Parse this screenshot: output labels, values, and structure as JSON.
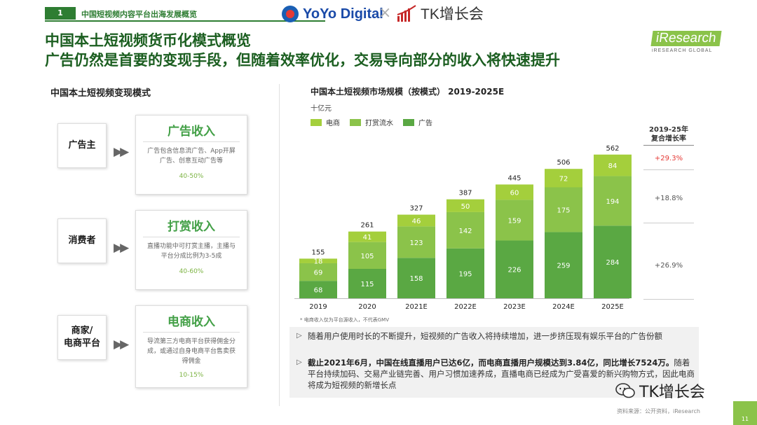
{
  "header": {
    "page_num": "1",
    "section": "中国短视频内容平台出海发展概览",
    "logo_yoyo": "YoYo Digital",
    "logo_sep": "×",
    "logo_tk": "TK增长会"
  },
  "titles": {
    "line1": "中国本土短视频货币化模式概览",
    "line2": "广告仍然是首要的变现手段，但随着效率优化，交易导向部分的收入将快速提升"
  },
  "brand": {
    "main": "iResearch",
    "sub": "iRESEARCH GLOBAL"
  },
  "left_panel": {
    "title": "中国本土短视频变现模式",
    "rows": [
      {
        "actor": "广告主",
        "mode": "广告收入",
        "desc": "广告包含信息流广告、App开屏广告、创意互动广告等",
        "pct": "40-50%"
      },
      {
        "actor": "消费者",
        "mode": "打赏收入",
        "desc": "直播功能中可打赏主播，主播与平台分成比例为3-5成",
        "pct": "40-60%"
      },
      {
        "actor": "商家/\n电商平台",
        "mode": "电商收入",
        "desc": "导流第三方电商平台获得佣金分成，或通过自身电商平台售卖获得佣金",
        "pct": "10-15%"
      }
    ]
  },
  "chart_title": "中国本土短视频市场规模（按模式） 2019-2025E",
  "unit": "十亿元",
  "colors": {
    "ecommerce": "#a4cf3c",
    "tipping": "#8bc34a",
    "ads": "#5aa843",
    "green_dark": "#1b5e20",
    "cagr_red": "#e53935"
  },
  "chart_data": {
    "type": "bar",
    "stacked": true,
    "title": "中国本土短视频市场规模（按模式） 2019-2025E",
    "ylabel": "十亿元",
    "categories": [
      "2019",
      "2020",
      "2021E",
      "2022E",
      "2023E",
      "2024E",
      "2025E"
    ],
    "series": [
      {
        "name": "广告",
        "values": [
          68,
          115,
          158,
          195,
          226,
          259,
          284
        ]
      },
      {
        "name": "打赏流水",
        "values": [
          69,
          105,
          123,
          142,
          159,
          175,
          194
        ]
      },
      {
        "name": "电商",
        "values": [
          18,
          41,
          46,
          50,
          60,
          72,
          84
        ]
      }
    ],
    "totals": [
      155,
      261,
      327,
      387,
      445,
      506,
      562
    ],
    "legend_order": [
      "电商",
      "打赏流水",
      "广告"
    ],
    "footnote": "* 电商收入仅为平台源收入，不代表GMV"
  },
  "cagr": {
    "header": "2019-25年\n复合增长率",
    "values": [
      "+29.3%",
      "+18.8%",
      "+26.9%"
    ]
  },
  "notes": [
    {
      "bullet": "▷",
      "text": "随着用户使用时长的不断提升，短视频的广告收入将持续增加，进一步挤压现有娱乐平台的广告份额"
    },
    {
      "bullet": "▷",
      "bold": "截止2021年6月，中国在线直播用户已达6亿，而电商直播用户规模达到3.84亿，同比增长7524万。",
      "text": "随着平台持续加码、交易产业链完善、用户习惯加速养成，直播电商已经成为广受喜爱的新兴购物方式，因此电商将成为短视频的新增长点"
    }
  ],
  "source": "资料来源：公开资料，iResearch",
  "watermark": "TK增长会",
  "page_corner": "11"
}
